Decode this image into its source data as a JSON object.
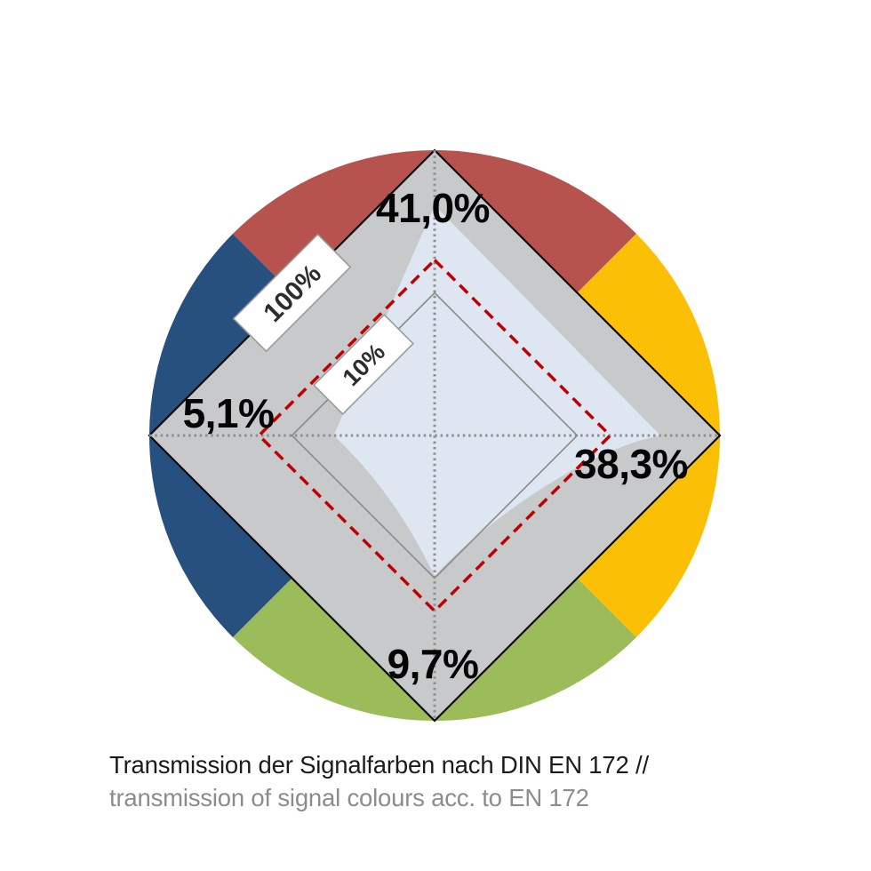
{
  "caption": {
    "line1_de": "Transmission der Signalfarben nach DIN EN 172 //",
    "line2_en": "transmission of signal colours acc. to EN 172"
  },
  "chart_data": {
    "type": "radar",
    "title": "Transmission der Signalfarben nach DIN EN 172 // transmission of signal colours acc. to EN 172",
    "axes_order": [
      "top",
      "right",
      "bottom",
      "left"
    ],
    "axes": [
      {
        "id": "top",
        "signal_colour": "red",
        "value_pct": 41.0,
        "label": "41,0%"
      },
      {
        "id": "right",
        "signal_colour": "yellow",
        "value_pct": 38.3,
        "label": "38,3%"
      },
      {
        "id": "bottom",
        "signal_colour": "green",
        "value_pct": 9.7,
        "label": "9,7%"
      },
      {
        "id": "left",
        "signal_colour": "blue",
        "value_pct": 5.1,
        "label": "5,1%"
      }
    ],
    "scale": {
      "type": "logarithmic",
      "center_pct": 1,
      "outer_ring_pct": 100,
      "inner_ring_pct": 10,
      "outer_ring_label": "100%",
      "inner_ring_label": "10%"
    },
    "reference_ring": {
      "style": "dashed",
      "estimated_pct": 17,
      "color": "#c00000"
    },
    "colors": {
      "segment_red": "#b6534f",
      "segment_yellow": "#fbbf06",
      "segment_green": "#9bbc59",
      "segment_blue": "#27507e",
      "grid_diamond_fill": "#c8c9ca",
      "grid_diamond_stroke": "#0a0a0a",
      "inner_ring_stroke": "#8a8a8a",
      "axis_dots": "#8e8e8e",
      "data_fill": "#dee6f2",
      "reference_dash": "#c00000"
    },
    "legend_position": "none",
    "grid": "diamond-log"
  }
}
